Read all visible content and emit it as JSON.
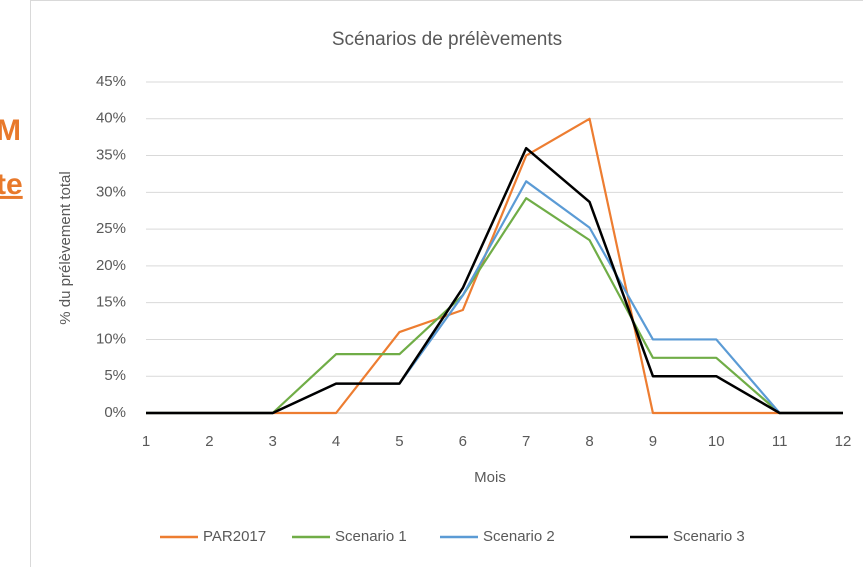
{
  "background_text": [
    "M",
    "te"
  ],
  "chart_data": {
    "type": "line",
    "title": "Scénarios de prélèvements",
    "x_label": "Mois",
    "y_label": "% du prélèvement total",
    "x": [
      1,
      2,
      3,
      4,
      5,
      6,
      7,
      8,
      9,
      10,
      11,
      12
    ],
    "xlim": [
      1,
      12
    ],
    "xticks": [
      1,
      2,
      3,
      4,
      5,
      6,
      7,
      8,
      9,
      10,
      11,
      12
    ],
    "ylim": [
      0,
      45
    ],
    "yticks": [
      {
        "value": 0,
        "label": "0%"
      },
      {
        "value": 5,
        "label": "5%"
      },
      {
        "value": 10,
        "label": "10%"
      },
      {
        "value": 15,
        "label": "15%"
      },
      {
        "value": 20,
        "label": "20%"
      },
      {
        "value": 25,
        "label": "25%"
      },
      {
        "value": 30,
        "label": "30%"
      },
      {
        "value": 35,
        "label": "35%"
      },
      {
        "value": 40,
        "label": "40%"
      },
      {
        "value": 45,
        "label": "45%"
      }
    ],
    "grid": true,
    "legend": "bottom",
    "series": [
      {
        "name": "PAR2017",
        "color": "#ed7d31",
        "values": [
          0,
          0,
          0,
          0,
          11,
          14,
          35,
          40,
          0,
          0,
          0,
          0
        ]
      },
      {
        "name": "Scenario 1",
        "color": "#70ad47",
        "values": [
          0,
          0,
          0,
          8,
          8,
          16,
          29.2,
          23.5,
          7.5,
          7.5,
          0,
          0
        ]
      },
      {
        "name": "Scenario 2",
        "color": "#5b9bd5",
        "values": [
          0,
          0,
          0,
          4,
          4,
          16,
          31.5,
          25.2,
          10,
          10,
          0,
          0
        ]
      },
      {
        "name": "Scenario 3",
        "color": "#000000",
        "values": [
          0,
          0,
          0,
          4,
          4,
          17,
          36,
          28.7,
          5,
          5,
          0,
          0
        ]
      }
    ]
  }
}
